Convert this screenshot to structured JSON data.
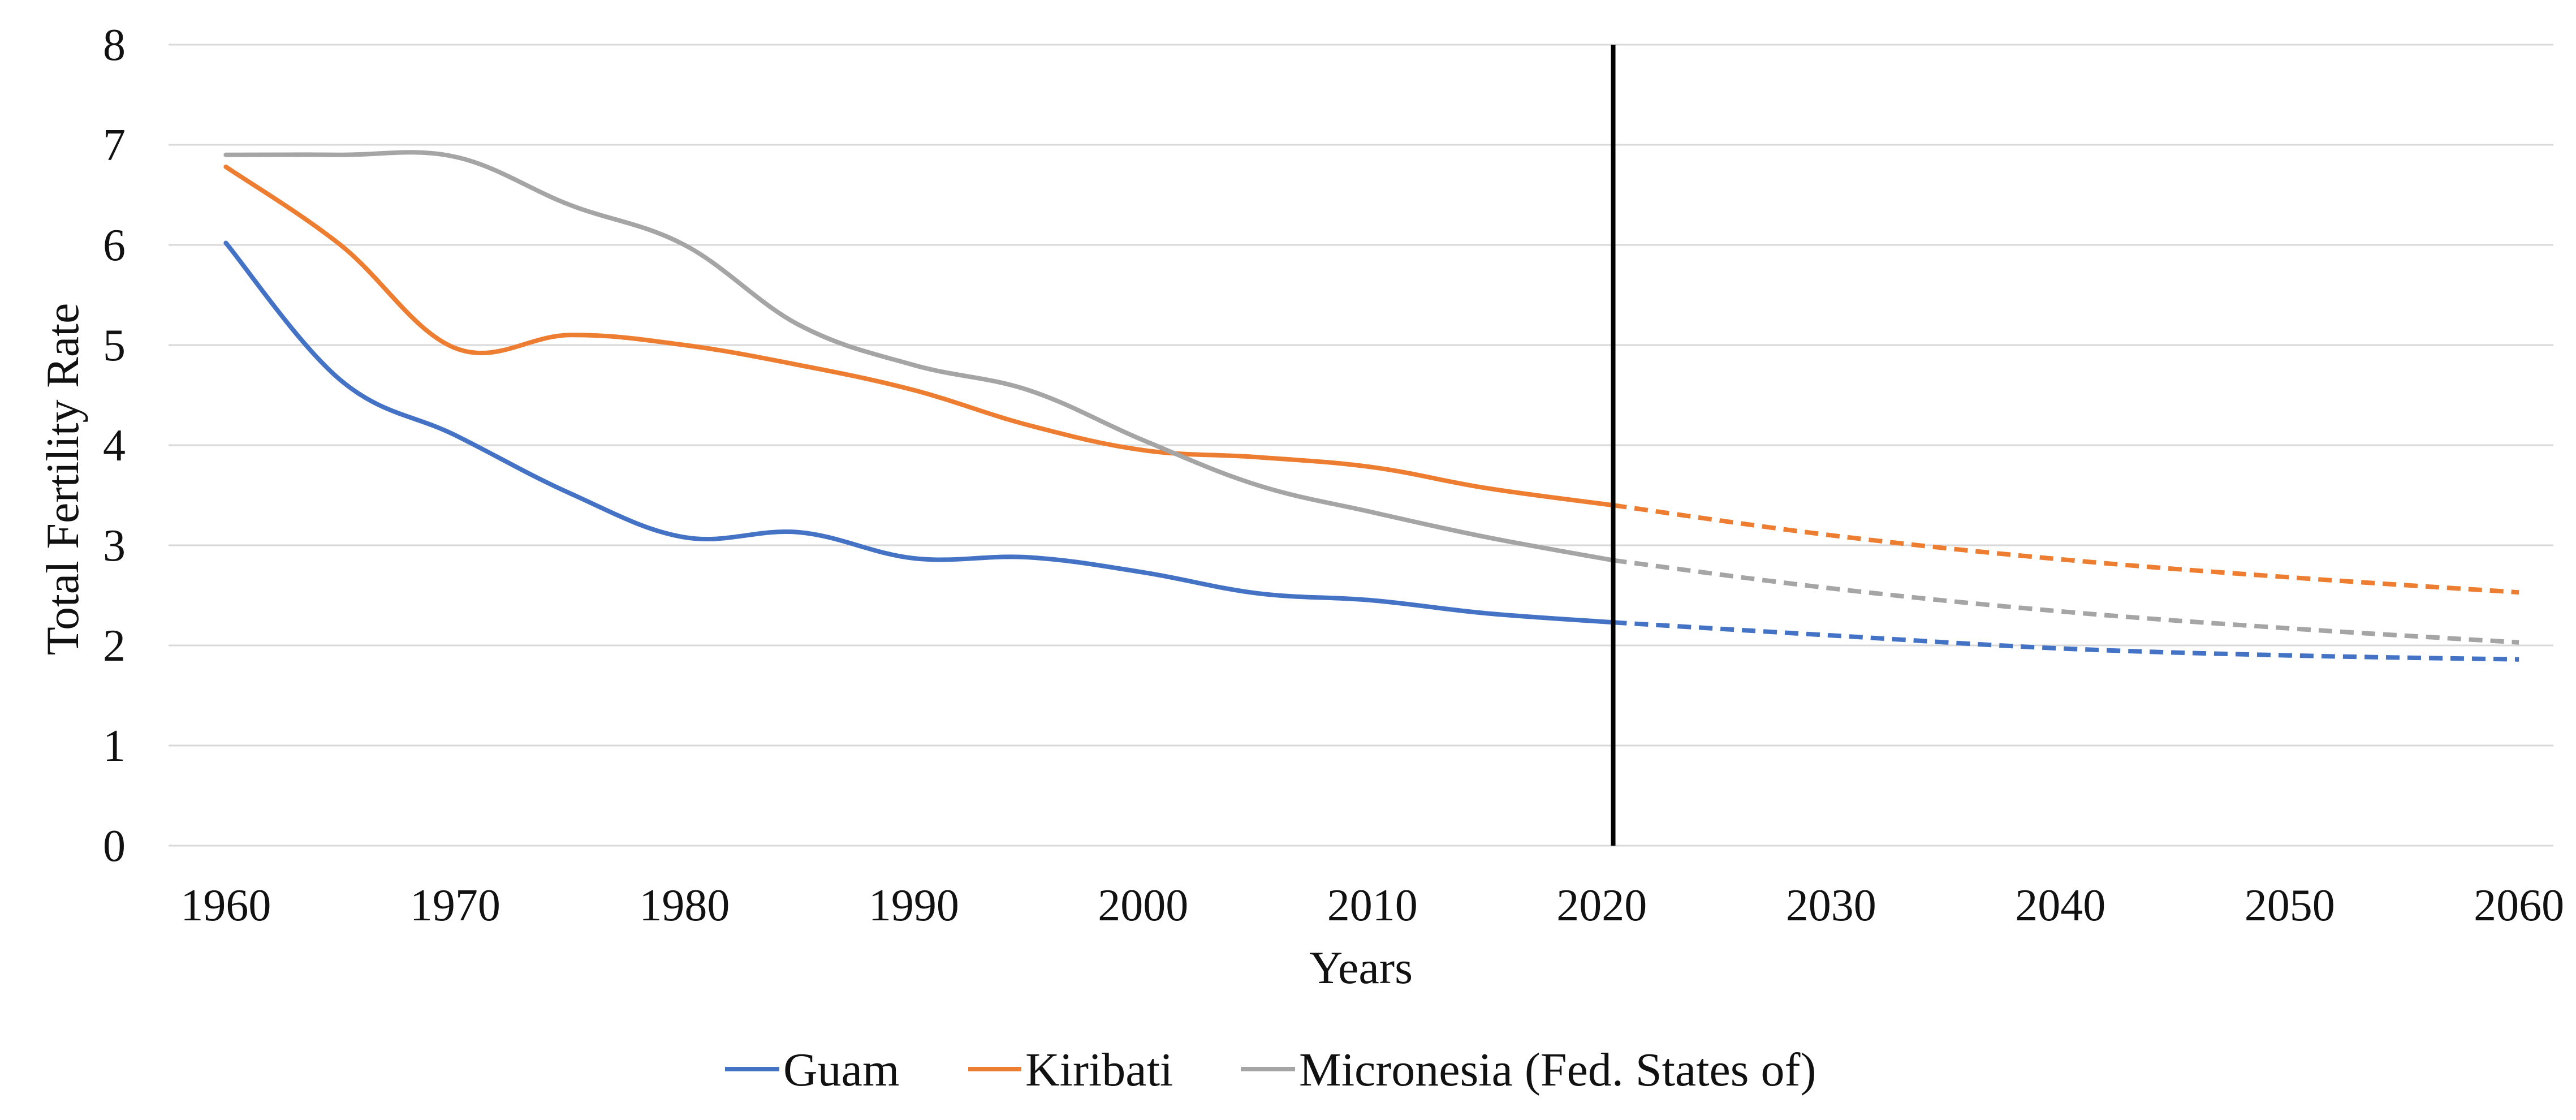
{
  "chart_data": {
    "type": "line",
    "title": "",
    "xlabel": "Years",
    "ylabel": "Total Fertility Rate",
    "xlim": [
      1957.5,
      2061.5
    ],
    "ylim": [
      0,
      8
    ],
    "x_ticks": [
      1960,
      1970,
      1980,
      1990,
      2000,
      2010,
      2020,
      2030,
      2040,
      2050,
      2060
    ],
    "y_ticks": [
      0,
      1,
      2,
      3,
      4,
      5,
      6,
      7,
      8
    ],
    "grid": "horizontal",
    "legend_position": "bottom",
    "reference_line": {
      "x": 2020.5,
      "color": "#000000"
    },
    "series": [
      {
        "name": "Guam",
        "color": "#4472C4",
        "observed": {
          "x": [
            1960,
            1965,
            1970,
            1975,
            1980,
            1985,
            1990,
            1995,
            2000,
            2005,
            2010,
            2015,
            2020.5
          ],
          "y": [
            6.02,
            4.65,
            4.1,
            3.52,
            3.08,
            3.13,
            2.87,
            2.88,
            2.73,
            2.52,
            2.45,
            2.32,
            2.23
          ]
        },
        "projected": {
          "x": [
            2020.5,
            2030,
            2040,
            2050,
            2060
          ],
          "y": [
            2.23,
            2.1,
            1.97,
            1.9,
            1.86
          ]
        }
      },
      {
        "name": "Kiribati",
        "color": "#ED7D31",
        "observed": {
          "x": [
            1960,
            1965,
            1970,
            1975,
            1980,
            1985,
            1990,
            1995,
            2000,
            2005,
            2010,
            2015,
            2020.5
          ],
          "y": [
            6.78,
            6.0,
            4.97,
            5.1,
            5.0,
            4.8,
            4.55,
            4.2,
            3.95,
            3.88,
            3.78,
            3.57,
            3.4
          ]
        },
        "projected": {
          "x": [
            2020.5,
            2030,
            2040,
            2050,
            2060
          ],
          "y": [
            3.4,
            3.1,
            2.86,
            2.68,
            2.53
          ]
        }
      },
      {
        "name": "Micronesia (Fed. States of)",
        "color": "#A5A5A5",
        "observed": {
          "x": [
            1960,
            1965,
            1970,
            1975,
            1980,
            1985,
            1990,
            1995,
            2000,
            2005,
            2010,
            2015,
            2020.5
          ],
          "y": [
            6.9,
            6.9,
            6.88,
            6.4,
            6.0,
            5.2,
            4.8,
            4.55,
            4.05,
            3.6,
            3.33,
            3.08,
            2.85
          ]
        },
        "projected": {
          "x": [
            2020.5,
            2030,
            2040,
            2050,
            2060
          ],
          "y": [
            2.85,
            2.57,
            2.34,
            2.17,
            2.03
          ]
        }
      }
    ]
  }
}
